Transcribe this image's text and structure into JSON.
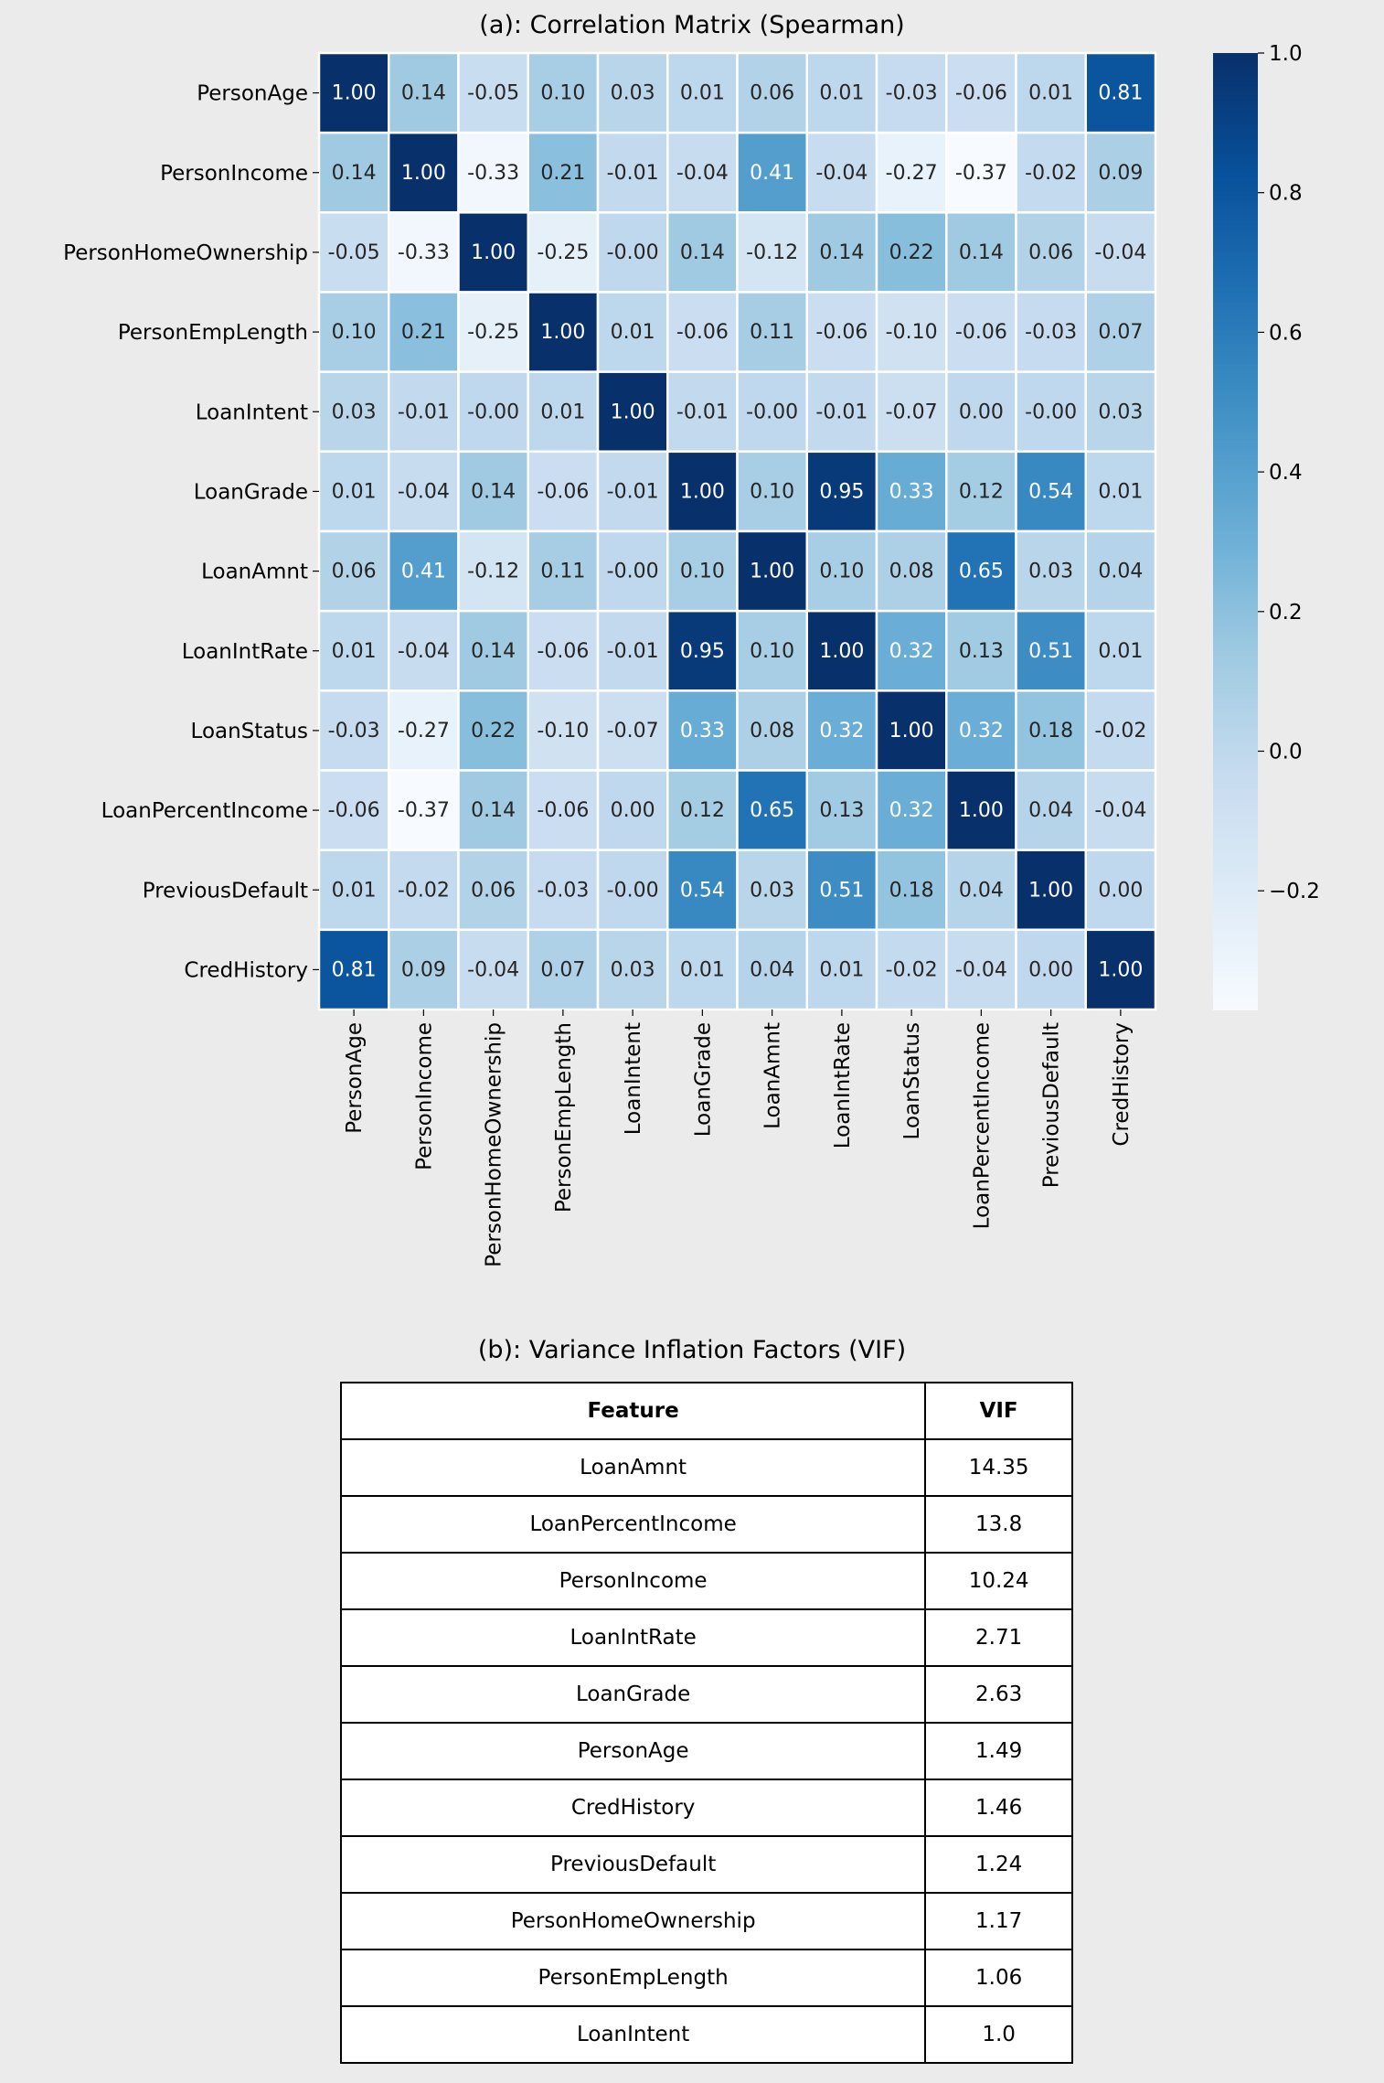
{
  "chart_data": [
    {
      "type": "heatmap",
      "title": "(a): Correlation Matrix (Spearman)",
      "labels": [
        "PersonAge",
        "PersonIncome",
        "PersonHomeOwnership",
        "PersonEmpLength",
        "LoanIntent",
        "LoanGrade",
        "LoanAmnt",
        "LoanIntRate",
        "LoanStatus",
        "LoanPercentIncome",
        "PreviousDefault",
        "CredHistory"
      ],
      "values": [
        [
          1.0,
          0.14,
          -0.05,
          0.1,
          0.03,
          0.01,
          0.06,
          0.01,
          -0.03,
          -0.06,
          0.01,
          0.81
        ],
        [
          0.14,
          1.0,
          -0.33,
          0.21,
          -0.01,
          -0.04,
          0.41,
          -0.04,
          -0.27,
          -0.37,
          -0.02,
          0.09
        ],
        [
          -0.05,
          -0.33,
          1.0,
          -0.25,
          -0.0,
          0.14,
          -0.12,
          0.14,
          0.22,
          0.14,
          0.06,
          -0.04
        ],
        [
          0.1,
          0.21,
          -0.25,
          1.0,
          0.01,
          -0.06,
          0.11,
          -0.06,
          -0.1,
          -0.06,
          -0.03,
          0.07
        ],
        [
          0.03,
          -0.01,
          -0.0,
          0.01,
          1.0,
          -0.01,
          -0.0,
          -0.01,
          -0.07,
          0.0,
          -0.0,
          0.03
        ],
        [
          0.01,
          -0.04,
          0.14,
          -0.06,
          -0.01,
          1.0,
          0.1,
          0.95,
          0.33,
          0.12,
          0.54,
          0.01
        ],
        [
          0.06,
          0.41,
          -0.12,
          0.11,
          -0.0,
          0.1,
          1.0,
          0.1,
          0.08,
          0.65,
          0.03,
          0.04
        ],
        [
          0.01,
          -0.04,
          0.14,
          -0.06,
          -0.01,
          0.95,
          0.1,
          1.0,
          0.32,
          0.13,
          0.51,
          0.01
        ],
        [
          -0.03,
          -0.27,
          0.22,
          -0.1,
          -0.07,
          0.33,
          0.08,
          0.32,
          1.0,
          0.32,
          0.18,
          -0.02
        ],
        [
          -0.06,
          -0.37,
          0.14,
          -0.06,
          0.0,
          0.12,
          0.65,
          0.13,
          0.32,
          1.0,
          0.04,
          -0.04
        ],
        [
          0.01,
          -0.02,
          0.06,
          -0.03,
          -0.0,
          0.54,
          0.03,
          0.51,
          0.18,
          0.04,
          1.0,
          0.0
        ],
        [
          0.81,
          0.09,
          -0.04,
          0.07,
          0.03,
          0.01,
          0.04,
          0.01,
          -0.02,
          -0.04,
          0.0,
          1.0
        ]
      ],
      "colormap": "Blues",
      "vlim": [
        -0.37,
        1.0
      ],
      "colorbar_ticks": [
        -0.2,
        0.0,
        0.2,
        0.4,
        0.6,
        0.8,
        1.0
      ],
      "colorbar_tick_labels": [
        "−0.2",
        "0.0",
        "0.2",
        "0.4",
        "0.6",
        "0.8",
        "1.0"
      ]
    },
    {
      "type": "table",
      "title": "(b): Variance Inflation Factors (VIF)",
      "columns": [
        "Feature",
        "VIF"
      ],
      "rows": [
        [
          "LoanAmnt",
          "14.35"
        ],
        [
          "LoanPercentIncome",
          "13.8"
        ],
        [
          "PersonIncome",
          "10.24"
        ],
        [
          "LoanIntRate",
          "2.71"
        ],
        [
          "LoanGrade",
          "2.63"
        ],
        [
          "PersonAge",
          "1.49"
        ],
        [
          "CredHistory",
          "1.46"
        ],
        [
          "PreviousDefault",
          "1.24"
        ],
        [
          "PersonHomeOwnership",
          "1.17"
        ],
        [
          "PersonEmpLength",
          "1.06"
        ],
        [
          "LoanIntent",
          "1.0"
        ]
      ]
    }
  ]
}
